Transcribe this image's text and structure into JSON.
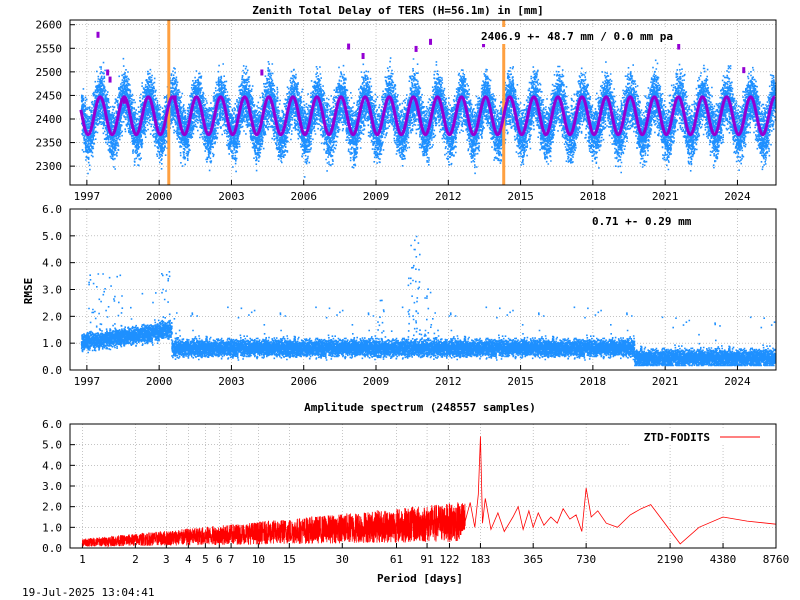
{
  "chart_data": [
    {
      "type": "scatter",
      "title": "Zenith Total Delay of TERS (H=56.1m) in [mm]",
      "annotation": "2406.9 +-  48.7 mm /  0.0 mm pa",
      "x_tick_labels": [
        "1997",
        "2000",
        "2003",
        "2006",
        "2009",
        "2012",
        "2015",
        "2018",
        "2021",
        "2024"
      ],
      "x_ticks": [
        1997,
        2000,
        2003,
        2006,
        2009,
        2012,
        2015,
        2018,
        2021,
        2024
      ],
      "xlim": [
        1996.3,
        2025.6
      ],
      "ylim": [
        2260,
        2610
      ],
      "y_ticks": [
        2300,
        2350,
        2400,
        2450,
        2500,
        2550,
        2600
      ],
      "y_tick_labels": [
        "2300",
        "2350",
        "2400",
        "2450",
        "2500",
        "2550",
        "2600"
      ],
      "mean": 2406.9,
      "std": 48.7,
      "trend_mm_pa": 0.0,
      "seasonal_amplitude": 40,
      "vertical_markers": [
        2000.4,
        2014.3
      ],
      "grid": true,
      "colors": {
        "data": "#1e90ff",
        "model": "#9400d3",
        "outliers": "#9400d3",
        "markers": "#ffa040"
      }
    },
    {
      "type": "scatter",
      "title": "",
      "ylabel": "RMSE",
      "annotation": "0.71 +-  0.29 mm",
      "x_tick_labels": [
        "1997",
        "2000",
        "2003",
        "2006",
        "2009",
        "2012",
        "2015",
        "2018",
        "2021",
        "2024"
      ],
      "x_ticks": [
        1997,
        2000,
        2003,
        2006,
        2009,
        2012,
        2015,
        2018,
        2021,
        2024
      ],
      "xlim": [
        1996.3,
        2025.6
      ],
      "ylim": [
        0,
        6
      ],
      "y_ticks": [
        0,
        1,
        2,
        3,
        4,
        5,
        6
      ],
      "y_tick_labels": [
        "0.0",
        "1.0",
        "2.0",
        "3.0",
        "4.0",
        "5.0",
        "6.0"
      ],
      "mean": 0.71,
      "std": 0.29,
      "grid": true,
      "colors": {
        "data": "#1e90ff"
      }
    },
    {
      "type": "line",
      "title": "Amplitude spectrum (248557 samples)",
      "xlabel": "Period [days]",
      "x_scale": "log",
      "x_tick_labels": [
        "1",
        "2",
        "3",
        "4",
        "5",
        "6",
        "7",
        "10",
        "15",
        "30",
        "61",
        "91",
        "122",
        "183",
        "365",
        "730",
        "2190",
        "4380",
        "8760"
      ],
      "x_ticks": [
        1,
        2,
        3,
        4,
        5,
        6,
        7,
        10,
        15,
        30,
        61,
        91,
        122,
        183,
        365,
        730,
        2190,
        4380,
        8760
      ],
      "xlim": [
        0.85,
        8760
      ],
      "ylim": [
        0,
        6
      ],
      "y_ticks": [
        0,
        1,
        2,
        3,
        4,
        5,
        6
      ],
      "y_tick_labels": [
        "0.0",
        "1.0",
        "2.0",
        "3.0",
        "4.0",
        "5.0",
        "6.0"
      ],
      "series": [
        {
          "name": "ZTD-FODITS"
        }
      ],
      "legend": "top-right",
      "peaks": [
        {
          "period": 183,
          "amplitude": 5.4
        },
        {
          "period": 730,
          "amplitude": 2.9
        },
        {
          "period": 1700,
          "amplitude": 2.1
        },
        {
          "period": 4380,
          "amplitude": 1.5
        }
      ],
      "grid": true,
      "colors": {
        "series": "#ff0000"
      }
    }
  ],
  "footer": {
    "timestamp": "19-Jul-2025 13:04:41"
  }
}
